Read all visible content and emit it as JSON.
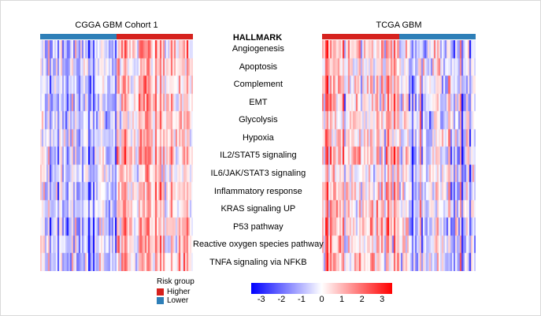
{
  "chart_data": {
    "type": "heatmap",
    "header": "HALLMARK",
    "rows": [
      "Angiogenesis",
      "Apoptosis",
      "Complement",
      "EMT",
      "Glycolysis",
      "Hypoxia",
      "IL2/STAT5 signaling",
      "IL6/JAK/STAT3 signaling",
      "Inflammatory response",
      "KRAS signaling UP",
      "P53 pathway",
      "Reactive oxygen species pathway",
      "TNFA signaling via NFKB"
    ],
    "row_weights": [
      1.0,
      0.7,
      0.85,
      1.0,
      0.75,
      0.8,
      1.05,
      0.6,
      0.9,
      0.7,
      1.1,
      1.0,
      0.95
    ],
    "panels": [
      {
        "id": "cgga",
        "title": "CGGA GBM Cohort 1",
        "n_cols": 96,
        "seed": 12,
        "noise_col": 0.8,
        "noise_cell": 0.55,
        "groups": [
          {
            "risk": "Lower",
            "color": "#2e7fb8",
            "fraction": 0.5,
            "mean": -0.9
          },
          {
            "risk": "Higher",
            "color": "#d6221e",
            "fraction": 0.5,
            "mean": 0.9
          }
        ]
      },
      {
        "id": "tcga",
        "title": "TCGA GBM",
        "n_cols": 96,
        "seed": 99,
        "noise_col": 0.95,
        "noise_cell": 0.7,
        "groups": [
          {
            "risk": "Higher",
            "color": "#d6221e",
            "fraction": 0.5,
            "mean": 0.65
          },
          {
            "risk": "Lower",
            "color": "#2e7fb8",
            "fraction": 0.5,
            "mean": -0.65
          }
        ]
      }
    ],
    "risk_legend": {
      "title": "Risk group",
      "items": [
        {
          "label": "Higher",
          "color": "#d6221e"
        },
        {
          "label": "Lower",
          "color": "#2e7fb8"
        }
      ]
    },
    "colorbar": {
      "min": -3.5,
      "max": 3.5,
      "low_color": "#0000ff",
      "mid_color": "#ffffff",
      "high_color": "#ff0000",
      "tick_values": [
        -3,
        -2,
        -1,
        0,
        1,
        2,
        3
      ],
      "tick_labels": [
        "-3",
        "-2",
        "-1",
        "0",
        "1",
        "2",
        "3"
      ]
    }
  }
}
